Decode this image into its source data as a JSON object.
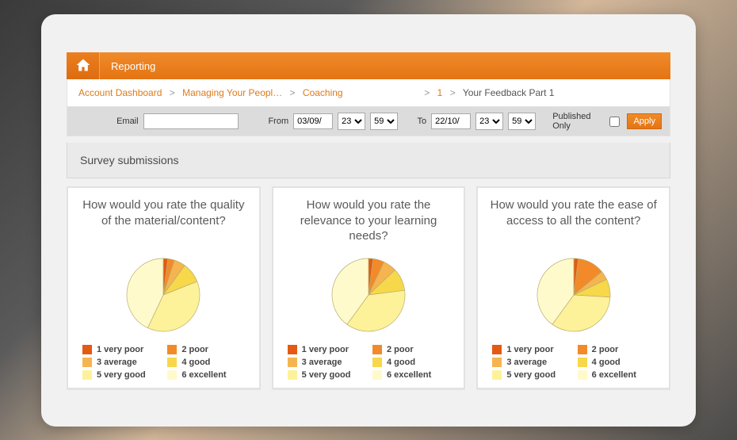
{
  "header": {
    "title": "Reporting"
  },
  "breadcrumbs": {
    "items": [
      {
        "label": "Account Dashboard",
        "link": true
      },
      {
        "label": "Managing Your Peopl…",
        "link": true
      },
      {
        "label": "Coaching",
        "link": true
      },
      {
        "label": "1",
        "link": true
      },
      {
        "label": "Your Feedback Part 1",
        "link": false
      }
    ],
    "separator": ">"
  },
  "filters": {
    "email_label": "Email",
    "email_value": "",
    "from_label": "From",
    "from_date": "03/09/",
    "from_hour": "23",
    "from_min": "59",
    "to_label": "To",
    "to_date": "22/10/",
    "to_hour": "23",
    "to_min": "59",
    "published_label": "Published Only",
    "published_checked": false,
    "apply_label": "Apply",
    "hour_options": [
      "23"
    ],
    "min_options": [
      "59"
    ]
  },
  "section_title": "Survey submissions",
  "legend_categories": [
    {
      "key": "1",
      "label": "1 very poor",
      "color": "#e35a12"
    },
    {
      "key": "2",
      "label": "2 poor",
      "color": "#f28a2a"
    },
    {
      "key": "3",
      "label": "3 average",
      "color": "#f6b451"
    },
    {
      "key": "4",
      "label": "4 good",
      "color": "#f6d84a"
    },
    {
      "key": "5",
      "label": "5 very good",
      "color": "#fdf29a"
    },
    {
      "key": "6",
      "label": "6 excellent",
      "color": "#fffacb"
    }
  ],
  "charts": [
    {
      "title": "How would you rate the quality of the material/content?",
      "type": "pie",
      "radius": 46,
      "stroke_color": "#b8ad6e",
      "slices": [
        {
          "value": 2,
          "color": "#e35a12"
        },
        {
          "value": 3,
          "color": "#f28a2a"
        },
        {
          "value": 5,
          "color": "#f6b451"
        },
        {
          "value": 9,
          "color": "#f6d84a"
        },
        {
          "value": 38,
          "color": "#fdf29a"
        },
        {
          "value": 43,
          "color": "#fffacb"
        }
      ]
    },
    {
      "title": "How would you rate the relevance to your learning needs?",
      "type": "pie",
      "radius": 46,
      "stroke_color": "#b8ad6e",
      "slices": [
        {
          "value": 2,
          "color": "#e35a12"
        },
        {
          "value": 5,
          "color": "#f28a2a"
        },
        {
          "value": 6,
          "color": "#f6b451"
        },
        {
          "value": 10,
          "color": "#f6d84a"
        },
        {
          "value": 37,
          "color": "#fdf29a"
        },
        {
          "value": 40,
          "color": "#fffacb"
        }
      ]
    },
    {
      "title": "How would you rate the ease of access to all the content?",
      "type": "pie",
      "radius": 46,
      "stroke_color": "#b8ad6e",
      "slices": [
        {
          "value": 2,
          "color": "#e35a12"
        },
        {
          "value": 12,
          "color": "#f28a2a"
        },
        {
          "value": 4,
          "color": "#f6b451"
        },
        {
          "value": 8,
          "color": "#f6d84a"
        },
        {
          "value": 34,
          "color": "#fdf29a"
        },
        {
          "value": 40,
          "color": "#fffacb"
        }
      ]
    }
  ]
}
